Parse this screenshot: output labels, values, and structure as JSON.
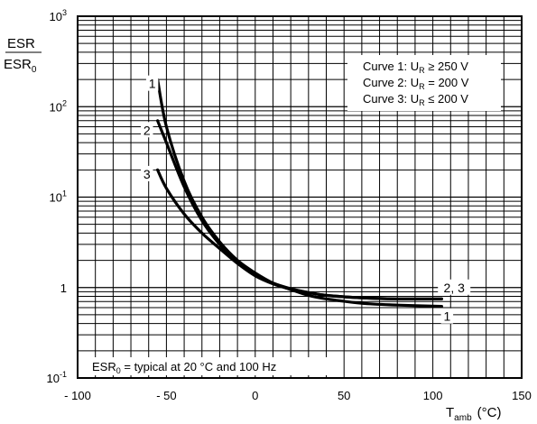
{
  "chart_data": {
    "type": "line",
    "ylabel": {
      "num": "ESR",
      "den_main": "ESR",
      "den_sub": "0"
    },
    "xlabel": {
      "main": "T",
      "sub": "amb",
      "unit": "(°C)"
    },
    "xlim": [
      -100,
      150
    ],
    "ylim": [
      0.1,
      1000
    ],
    "y_scale": "log",
    "x_ticks": [
      "- 100",
      "- 50",
      "0",
      "50",
      "100",
      "150"
    ],
    "y_ticks": [
      {
        "base": "10",
        "exp": "3"
      },
      {
        "base": "10",
        "exp": "2"
      },
      {
        "base": "10",
        "exp": "1"
      },
      {
        "base": "1",
        "exp": ""
      },
      {
        "base": "10",
        "exp": "-1"
      }
    ],
    "grid": true,
    "legend": {
      "placement": "top-right",
      "lines": [
        {
          "prefix": "Curve 1: U",
          "sub": "R",
          "rel": "≥",
          "value": "250 V"
        },
        {
          "prefix": "Curve 2: U",
          "sub": "R",
          "rel": "=",
          "value": "200 V"
        },
        {
          "prefix": "Curve 3: U",
          "sub": "R",
          "rel": "≤",
          "value": "200 V"
        }
      ]
    },
    "note": {
      "pre": "ESR",
      "sub": "0",
      "post": " = typical at 20 °C and 100 Hz"
    },
    "series": [
      {
        "label": "1",
        "x": [
          -55,
          -50,
          -40,
          -30,
          -20,
          -10,
          0,
          10,
          20,
          30,
          40,
          60,
          80,
          105
        ],
        "values": [
          200,
          60,
          15,
          6,
          3.2,
          2,
          1.45,
          1.12,
          0.95,
          0.82,
          0.75,
          0.67,
          0.64,
          0.62
        ]
      },
      {
        "label": "2",
        "x": [
          -55,
          -50,
          -40,
          -30,
          -20,
          -10,
          0,
          10,
          20,
          30,
          40,
          60,
          80,
          105
        ],
        "values": [
          70,
          40,
          13,
          5.5,
          3,
          1.9,
          1.4,
          1.12,
          0.97,
          0.88,
          0.82,
          0.77,
          0.75,
          0.75
        ]
      },
      {
        "label": "3",
        "x": [
          -55,
          -50,
          -40,
          -30,
          -20,
          -10,
          0,
          10,
          20,
          30,
          40,
          60,
          80,
          105
        ],
        "values": [
          20,
          12.5,
          6.5,
          4,
          2.7,
          1.85,
          1.35,
          1.1,
          0.96,
          0.88,
          0.82,
          0.77,
          0.75,
          0.75
        ]
      }
    ],
    "curve_labels": [
      {
        "text": "1",
        "x": -58,
        "y": 180
      },
      {
        "text": "2",
        "x": -61,
        "y": 55
      },
      {
        "text": "3",
        "x": -61,
        "y": 18
      },
      {
        "text": "2, 3",
        "x": 112,
        "y": 1.0
      },
      {
        "text": "1",
        "x": 108,
        "y": 0.48
      }
    ]
  }
}
